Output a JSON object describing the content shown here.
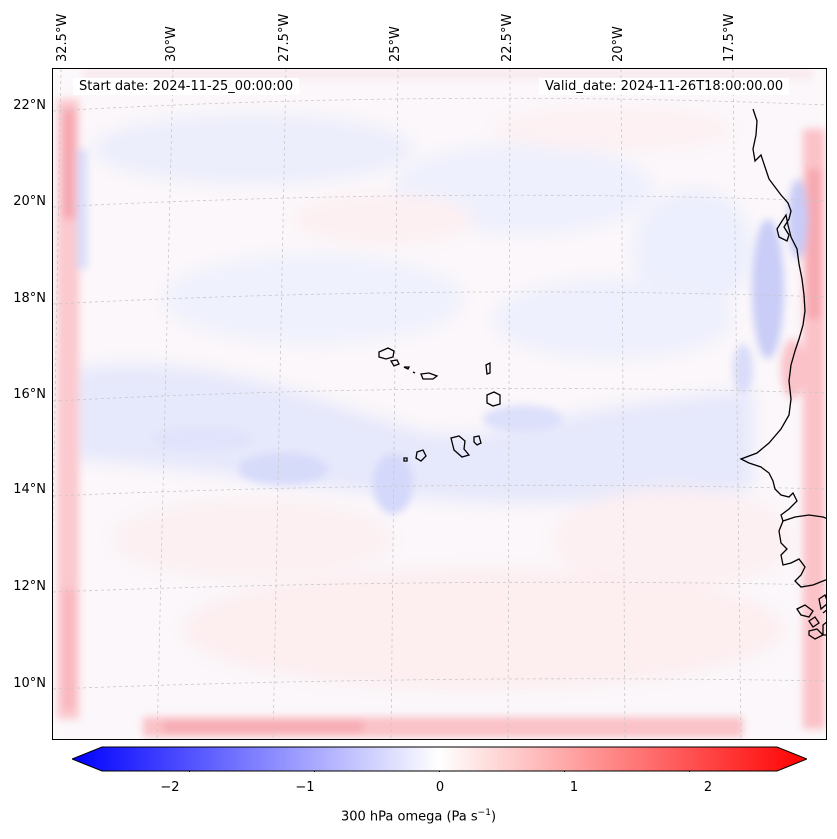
{
  "map": {
    "start_date": "Start date: 2024-11-25_00:00:00",
    "valid_date": "Valid_date: 2024-11-26T18:00:00.00",
    "lon_labels": [
      "32.5°W",
      "30°W",
      "27.5°W",
      "25°W",
      "22.5°W",
      "20°W",
      "17.5°W"
    ],
    "lat_labels": [
      "22°N",
      "20°N",
      "18°N",
      "16°N",
      "14°N",
      "12°N",
      "10°N"
    ]
  },
  "colorbar": {
    "ticks": [
      "−2",
      "−1",
      "0",
      "1",
      "2"
    ],
    "label_main": "300 hPa omega (Pa s",
    "label_sup": "−1",
    "label_end": ")",
    "min": -2.7,
    "max": 2.7,
    "tick_values": [
      -2,
      -1,
      0,
      1,
      2
    ]
  },
  "colors": {
    "negative": "#0000ff",
    "positive": "#ff0000",
    "neutral": "#ffffff"
  }
}
